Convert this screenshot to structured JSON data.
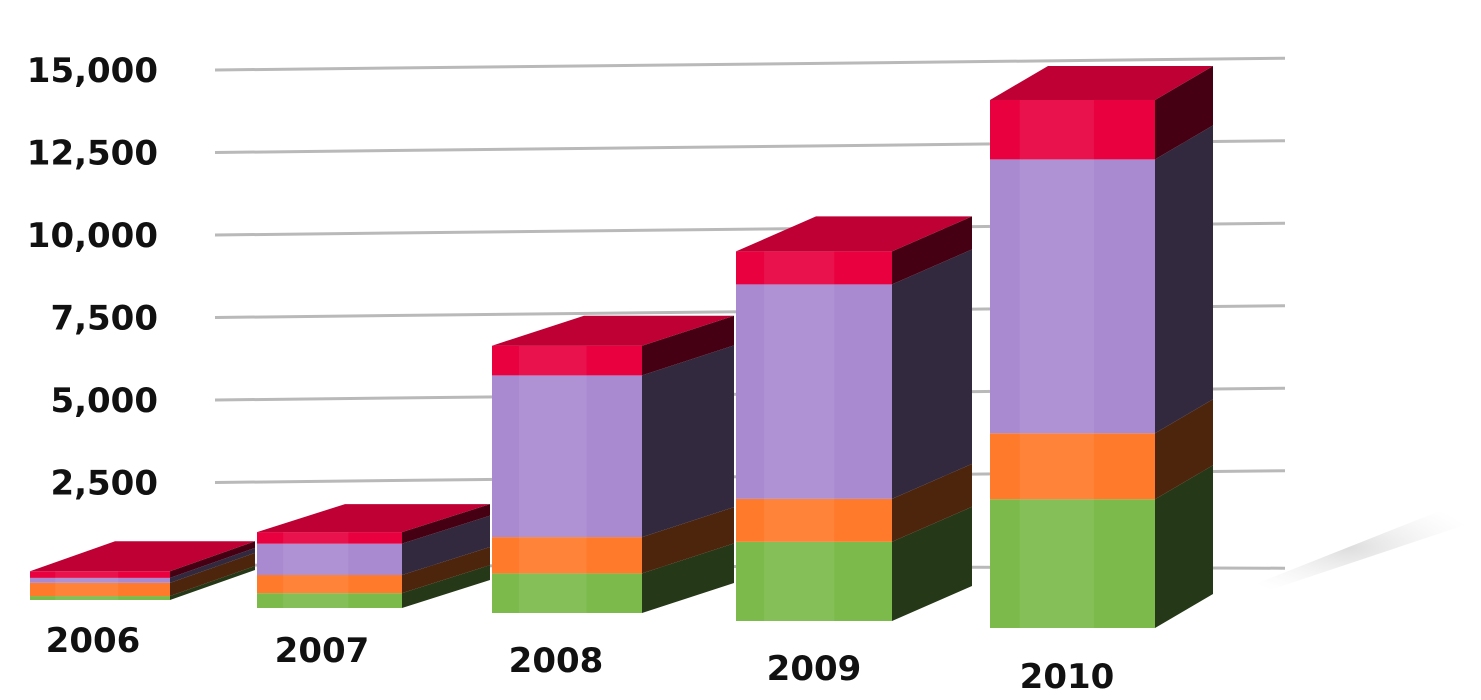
{
  "chart_data": {
    "type": "bar",
    "stacked": true,
    "style": "3d",
    "categories": [
      "2006",
      "2007",
      "2008",
      "2009",
      "2010"
    ],
    "series": [
      {
        "color": "#7cbb4b",
        "values": [
          120,
          450,
          1200,
          2400,
          3900
        ]
      },
      {
        "color": "#ff7a2b",
        "values": [
          400,
          550,
          1100,
          1300,
          2000
        ]
      },
      {
        "color": "#a98ad0",
        "values": [
          150,
          950,
          4900,
          6500,
          8300
        ]
      },
      {
        "color": "#e8003f",
        "values": [
          200,
          350,
          900,
          1000,
          1800
        ]
      }
    ],
    "ylim": [
      0,
      15000
    ],
    "yticks": [
      2500,
      5000,
      7500,
      10000,
      12500,
      15000
    ],
    "ytick_labels": [
      "2,500",
      "5,000",
      "7,500",
      "10,000",
      "12,500",
      "15,000"
    ],
    "grid": true,
    "legend": "none"
  }
}
